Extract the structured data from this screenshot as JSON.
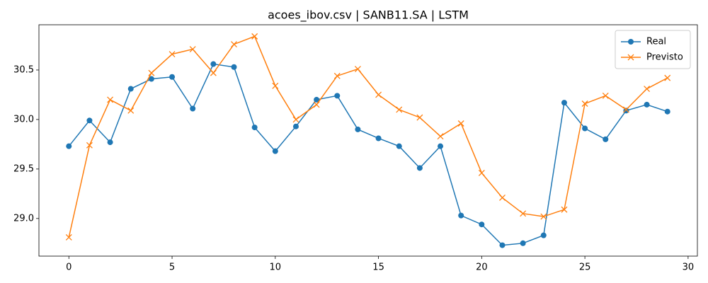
{
  "chart_data": {
    "type": "line",
    "title": "acoes_ibov.csv | SANB11.SA | LSTM",
    "x": [
      0,
      1,
      2,
      3,
      4,
      5,
      6,
      7,
      8,
      9,
      10,
      11,
      12,
      13,
      14,
      15,
      16,
      17,
      18,
      19,
      20,
      21,
      22,
      23,
      24,
      25,
      26,
      27,
      28,
      29
    ],
    "series": [
      {
        "name": "Real",
        "color": "#1f77b4",
        "marker": "circle",
        "values": [
          29.73,
          29.99,
          29.77,
          30.31,
          30.41,
          30.43,
          30.11,
          30.56,
          30.53,
          29.92,
          29.68,
          29.93,
          30.2,
          30.24,
          29.9,
          29.81,
          29.73,
          29.51,
          29.73,
          29.03,
          28.94,
          28.73,
          28.75,
          28.83,
          30.17,
          29.91,
          29.8,
          30.09,
          30.15,
          30.08
        ]
      },
      {
        "name": "Previsto",
        "color": "#ff7f0e",
        "marker": "x",
        "values": [
          28.81,
          29.74,
          30.2,
          30.09,
          30.47,
          30.66,
          30.71,
          30.47,
          30.76,
          30.84,
          30.34,
          30.0,
          30.15,
          30.44,
          30.51,
          30.25,
          30.1,
          30.02,
          29.83,
          29.96,
          29.46,
          29.21,
          29.05,
          29.02,
          29.09,
          30.16,
          30.24,
          30.1,
          30.31,
          30.42
        ]
      }
    ],
    "xlim": [
      -1.45,
      30.45
    ],
    "ylim": [
      28.62,
      30.957
    ],
    "xticks": [
      0,
      5,
      10,
      15,
      20,
      25,
      30
    ],
    "yticks": [
      {
        "value": 29,
        "label": "29.0"
      },
      29.5,
      {
        "value": 30,
        "label": "30.0"
      },
      30.5
    ],
    "legend": "upper right"
  }
}
